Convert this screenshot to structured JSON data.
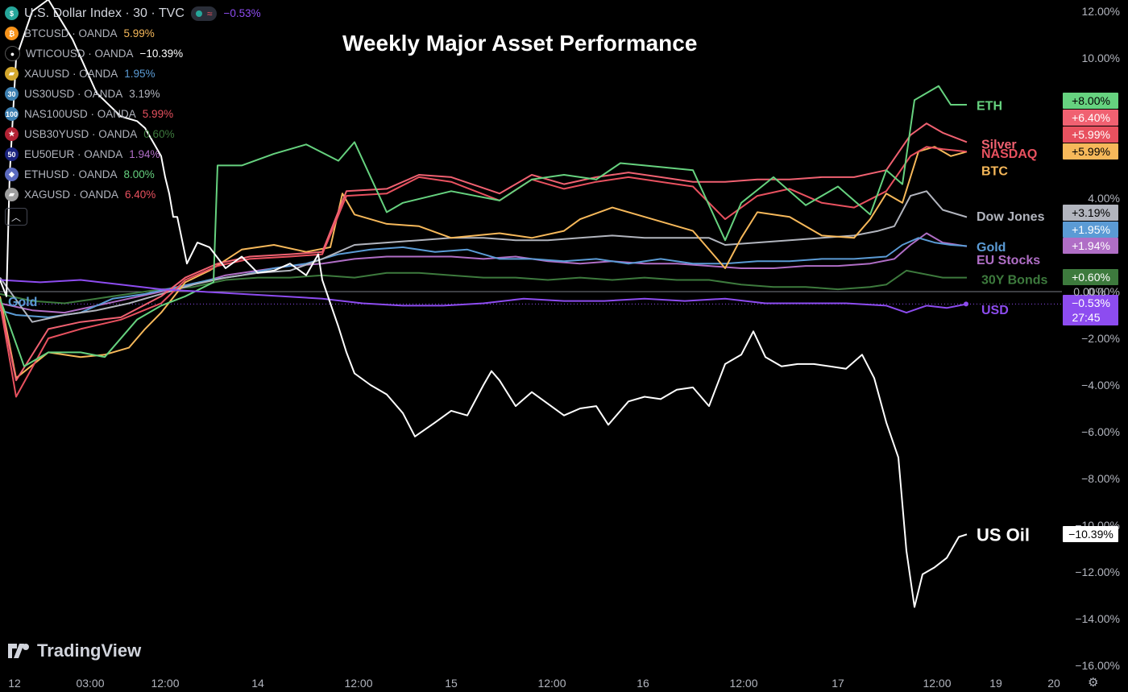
{
  "title": "Weekly Major Asset Performance",
  "header": {
    "symbol": "U.S. Dollar Index · 30 · TVC",
    "pill_glyph": "≈",
    "change": "−0.53%"
  },
  "legend": [
    {
      "icon": "bitcoin-icon",
      "glyph": "₿",
      "icon_bg": "#f7931a",
      "name": "BTCUSD · OANDA",
      "value": "5.99%",
      "color": "#f6b85a"
    },
    {
      "icon": "oil-drop-icon",
      "glyph": "●",
      "icon_bg": "#000000",
      "name": "WTICOUSD · OANDA",
      "value": "−10.39%",
      "color": "#ffffff"
    },
    {
      "icon": "gold-bars-icon",
      "glyph": "▰",
      "icon_bg": "#d4a72c",
      "name": "XAUUSD · OANDA",
      "value": "1.95%",
      "color": "#5b9bd5"
    },
    {
      "icon": "us30-icon",
      "glyph": "30",
      "icon_bg": "#3c7fb1",
      "name": "US30USD · OANDA",
      "value": "3.19%",
      "color": "#b2b5be"
    },
    {
      "icon": "nas100-icon",
      "glyph": "100",
      "icon_bg": "#3c7fb1",
      "name": "NAS100USD · OANDA",
      "value": "5.99%",
      "color": "#e8515f"
    },
    {
      "icon": "us-flag-icon",
      "glyph": "★",
      "icon_bg": "#b22234",
      "name": "USB30YUSD · OANDA",
      "value": "0.60%",
      "color": "#3d7a3d"
    },
    {
      "icon": "eu50-icon",
      "glyph": "50",
      "icon_bg": "#1a237e",
      "name": "EU50EUR · OANDA",
      "value": "1.94%",
      "color": "#b06ec6"
    },
    {
      "icon": "ethereum-icon",
      "glyph": "◆",
      "icon_bg": "#5c6bc0",
      "name": "ETHUSD · OANDA",
      "value": "8.00%",
      "color": "#66d27f"
    },
    {
      "icon": "silver-bars-icon",
      "glyph": "▰",
      "icon_bg": "#9e9e9e",
      "name": "XAGUSD · OANDA",
      "value": "6.40%",
      "color": "#e8515f"
    }
  ],
  "logo_text": "TradingView",
  "chart_data": {
    "type": "line",
    "x_ticks": [
      "12",
      "03:00",
      "12:00",
      "14",
      "12:00",
      "15",
      "12:00",
      "16",
      "12:00",
      "17",
      "12:00",
      "19",
      "20"
    ],
    "y_ticks": [
      "12.00%",
      "10.00%",
      "4.00%",
      "0.00%",
      "−2.00%",
      "−4.00%",
      "−6.00%",
      "−8.00%",
      "−10.00%",
      "−12.00%",
      "−14.00%",
      "−16.00%"
    ],
    "ylim": [
      -16,
      12
    ],
    "series": [
      {
        "name": "ETH",
        "color": "#66d27f",
        "badge": "+8.00%",
        "badge_text": "#000000",
        "x": [
          0,
          30,
          60,
          100,
          130,
          170,
          200,
          230,
          265,
          270,
          300,
          340,
          380,
          420,
          440,
          480,
          500,
          560,
          620,
          660,
          700,
          740,
          770,
          800,
          860,
          900,
          920,
          960,
          1000,
          1040,
          1080,
          1100,
          1120,
          1135,
          1150,
          1165,
          1180,
          1200
        ],
        "y": [
          -0.3,
          -3.2,
          -2.6,
          -2.6,
          -2.8,
          -1.2,
          -0.6,
          -0.2,
          0.4,
          5.4,
          5.4,
          5.9,
          6.3,
          5.6,
          6.4,
          3.4,
          3.8,
          4.3,
          3.9,
          4.8,
          5.0,
          4.8,
          5.5,
          5.4,
          5.2,
          2.2,
          3.8,
          4.9,
          3.7,
          4.5,
          3.3,
          5.2,
          4.6,
          8.2,
          8.5,
          8.8,
          8.0,
          8.0
        ]
      },
      {
        "name": "Silver",
        "color": "#f06171",
        "badge": "+6.40%",
        "badge_text": "#ffffff",
        "x": [
          0,
          20,
          60,
          100,
          150,
          200,
          230,
          270,
          310,
          360,
          400,
          430,
          480,
          520,
          560,
          620,
          660,
          700,
          740,
          780,
          820,
          860,
          900,
          940,
          980,
          1020,
          1060,
          1100,
          1130,
          1150,
          1170,
          1200
        ],
        "y": [
          -0.4,
          -3.8,
          -1.6,
          -1.3,
          -1.1,
          -0.2,
          0.6,
          1.2,
          1.5,
          1.6,
          1.7,
          4.3,
          4.4,
          5.0,
          4.9,
          4.2,
          5.0,
          4.6,
          4.9,
          5.1,
          4.9,
          4.7,
          4.7,
          4.8,
          4.8,
          4.9,
          4.9,
          5.2,
          6.7,
          7.2,
          6.8,
          6.4
        ]
      },
      {
        "name": "NASDAQ",
        "color": "#e8515f",
        "badge": "+5.99%",
        "badge_text": "#ffffff",
        "x": [
          0,
          20,
          60,
          100,
          150,
          200,
          230,
          270,
          310,
          360,
          400,
          430,
          480,
          520,
          560,
          620,
          660,
          700,
          740,
          780,
          820,
          860,
          900,
          940,
          980,
          1020,
          1060,
          1100,
          1130,
          1150,
          1170,
          1200
        ],
        "y": [
          -0.5,
          -4.5,
          -2.0,
          -1.6,
          -1.2,
          -0.5,
          0.5,
          1.1,
          1.4,
          1.5,
          1.6,
          4.1,
          4.2,
          4.9,
          4.7,
          3.9,
          4.8,
          4.4,
          4.7,
          4.9,
          4.7,
          4.5,
          3.1,
          4.1,
          4.4,
          3.8,
          3.6,
          4.3,
          5.8,
          6.2,
          6.1,
          5.99
        ]
      },
      {
        "name": "BTC",
        "color": "#f6b85a",
        "badge": "+5.99%",
        "badge_text": "#000000",
        "x": [
          0,
          20,
          60,
          100,
          130,
          160,
          180,
          200,
          230,
          260,
          300,
          340,
          380,
          410,
          425,
          440,
          480,
          520,
          560,
          620,
          660,
          700,
          720,
          760,
          800,
          860,
          900,
          920,
          940,
          980,
          1020,
          1060,
          1080,
          1100,
          1120,
          1140,
          1160,
          1180,
          1200
        ],
        "y": [
          -0.2,
          -3.7,
          -2.6,
          -2.8,
          -2.7,
          -2.4,
          -1.6,
          -0.9,
          0.4,
          0.9,
          1.8,
          2.0,
          1.7,
          1.9,
          4.2,
          3.3,
          2.9,
          2.8,
          2.3,
          2.5,
          2.3,
          2.6,
          3.1,
          3.6,
          3.2,
          2.6,
          1.0,
          2.3,
          3.4,
          3.2,
          2.4,
          2.3,
          3.1,
          4.2,
          3.8,
          6.0,
          6.2,
          5.8,
          5.99
        ]
      },
      {
        "name": "Dow Jones",
        "color": "#b2b5be",
        "badge": "+3.19%",
        "badge_text": "#000000",
        "x": [
          0,
          40,
          80,
          120,
          160,
          200,
          240,
          280,
          320,
          360,
          400,
          440,
          480,
          520,
          560,
          600,
          640,
          680,
          720,
          760,
          800,
          840,
          880,
          900,
          940,
          980,
          1020,
          1060,
          1090,
          1110,
          1130,
          1150,
          1170,
          1200
        ],
        "y": [
          0.6,
          -1.3,
          -1.0,
          -0.8,
          -0.5,
          -0.1,
          0.3,
          0.6,
          0.8,
          0.9,
          1.4,
          2.0,
          2.1,
          2.2,
          2.3,
          2.3,
          2.2,
          2.2,
          2.3,
          2.4,
          2.3,
          2.3,
          2.3,
          2.0,
          2.1,
          2.2,
          2.3,
          2.4,
          2.6,
          2.8,
          4.1,
          4.3,
          3.5,
          3.19
        ]
      },
      {
        "name": "Gold",
        "color": "#5b9bd5",
        "badge": "+1.95%",
        "badge_text": "#ffffff",
        "x": [
          0,
          20,
          60,
          100,
          140,
          180,
          220,
          260,
          300,
          340,
          380,
          420,
          460,
          500,
          540,
          580,
          620,
          660,
          700,
          740,
          780,
          820,
          860,
          900,
          940,
          980,
          1020,
          1060,
          1100,
          1120,
          1140,
          1160,
          1180,
          1200
        ],
        "y": [
          -0.8,
          -1.0,
          -1.1,
          -0.9,
          -0.3,
          -0.1,
          0.2,
          0.5,
          0.7,
          1.0,
          1.2,
          1.6,
          1.8,
          1.9,
          1.7,
          1.8,
          1.4,
          1.4,
          1.3,
          1.4,
          1.2,
          1.4,
          1.2,
          1.2,
          1.3,
          1.3,
          1.4,
          1.4,
          1.5,
          2.0,
          2.3,
          2.1,
          2.0,
          1.95
        ]
      },
      {
        "name": "EU Stocks",
        "color": "#b06ec6",
        "badge": "+1.94%",
        "badge_text": "#ffffff",
        "x": [
          0,
          40,
          80,
          120,
          160,
          200,
          240,
          280,
          320,
          360,
          400,
          440,
          480,
          520,
          560,
          600,
          640,
          680,
          720,
          760,
          800,
          840,
          880,
          920,
          960,
          1000,
          1040,
          1080,
          1110,
          1130,
          1150,
          1170,
          1200
        ],
        "y": [
          -0.5,
          -0.8,
          -0.9,
          -0.6,
          -0.3,
          0.0,
          0.3,
          0.7,
          0.9,
          1.1,
          1.2,
          1.4,
          1.5,
          1.5,
          1.5,
          1.4,
          1.5,
          1.3,
          1.2,
          1.3,
          1.2,
          1.2,
          1.1,
          1.0,
          1.0,
          1.1,
          1.1,
          1.2,
          1.4,
          2.0,
          2.5,
          2.1,
          1.94
        ]
      },
      {
        "name": "30Y Bonds",
        "color": "#3d7a3d",
        "badge": "+0.60%",
        "badge_text": "#ffffff",
        "x": [
          0,
          40,
          80,
          120,
          160,
          200,
          240,
          280,
          320,
          360,
          400,
          440,
          480,
          520,
          560,
          600,
          640,
          680,
          720,
          760,
          800,
          840,
          880,
          920,
          960,
          1000,
          1040,
          1080,
          1100,
          1125,
          1140,
          1170,
          1200
        ],
        "y": [
          -0.1,
          -0.4,
          -0.5,
          -0.3,
          -0.1,
          0.1,
          0.2,
          0.5,
          0.6,
          0.6,
          0.7,
          0.6,
          0.8,
          0.8,
          0.7,
          0.6,
          0.6,
          0.5,
          0.6,
          0.5,
          0.6,
          0.5,
          0.5,
          0.3,
          0.2,
          0.2,
          0.1,
          0.2,
          0.3,
          0.9,
          0.8,
          0.6,
          0.6
        ]
      },
      {
        "name": "USD",
        "color": "#8d4cf0",
        "badge": "−0.53%",
        "badge_text": "#ffffff",
        "badge_sub": "27:45",
        "x": [
          0,
          50,
          100,
          150,
          200,
          250,
          300,
          350,
          400,
          450,
          500,
          550,
          600,
          650,
          700,
          750,
          800,
          850,
          900,
          950,
          1000,
          1050,
          1100,
          1125,
          1150,
          1175,
          1200
        ],
        "y": [
          0.5,
          0.4,
          0.5,
          0.3,
          0.1,
          0.0,
          -0.1,
          -0.2,
          -0.3,
          -0.5,
          -0.6,
          -0.6,
          -0.5,
          -0.3,
          -0.4,
          -0.4,
          -0.3,
          -0.4,
          -0.3,
          -0.5,
          -0.5,
          -0.5,
          -0.6,
          -0.9,
          -0.6,
          -0.7,
          -0.53
        ]
      },
      {
        "name": "US Oil",
        "color": "#ffffff",
        "badge": "−10.39%",
        "badge_text": "#000000",
        "x": [
          0,
          8,
          12,
          20,
          40,
          60,
          90,
          120,
          150,
          170,
          180,
          200,
          205,
          210,
          215,
          220,
          232,
          245,
          260,
          280,
          300,
          320,
          340,
          360,
          380,
          395,
          400,
          410,
          420,
          430,
          440,
          460,
          480,
          500,
          515,
          540,
          560,
          580,
          600,
          610,
          620,
          640,
          660,
          680,
          700,
          720,
          740,
          755,
          780,
          800,
          820,
          840,
          860,
          880,
          900,
          920,
          935,
          950,
          970,
          990,
          1010,
          1030,
          1050,
          1070,
          1085,
          1100,
          1115,
          1125,
          1135,
          1145,
          1160,
          1175,
          1190,
          1200
        ],
        "y": [
          0.5,
          -0.2,
          5,
          10,
          12,
          12.5,
          10.8,
          8.5,
          7.5,
          7.3,
          7.0,
          5.8,
          4.9,
          4.2,
          3.2,
          3.2,
          1.2,
          2.1,
          1.9,
          1.0,
          1.5,
          0.8,
          0.9,
          1.2,
          0.7,
          1.6,
          0.5,
          -0.5,
          -1.5,
          -2.6,
          -3.5,
          -4.0,
          -4.4,
          -5.2,
          -6.2,
          -5.6,
          -5.1,
          -5.3,
          -4.0,
          -3.4,
          -3.8,
          -4.9,
          -4.3,
          -4.8,
          -5.3,
          -5.0,
          -4.9,
          -5.7,
          -4.7,
          -4.5,
          -4.6,
          -4.2,
          -4.1,
          -4.9,
          -3.1,
          -2.7,
          -1.7,
          -2.8,
          -3.2,
          -3.1,
          -3.1,
          -3.2,
          -3.3,
          -2.7,
          -3.7,
          -5.6,
          -7.1,
          -11.1,
          -13.5,
          -12.1,
          -11.8,
          -11.4,
          -10.5,
          -10.39
        ]
      }
    ],
    "labels": [
      {
        "text": "ETH",
        "series": "ETH",
        "y": 7.95,
        "color": "#66d27f"
      },
      {
        "text": "Silver",
        "series": "Silver",
        "y": 6.3,
        "color": "#f06171"
      },
      {
        "text": "NASDAQ",
        "series": "NASDAQ",
        "y": 5.9,
        "color": "#e8515f"
      },
      {
        "text": "BTC",
        "series": "BTC",
        "y": 5.15,
        "color": "#f6b85a"
      },
      {
        "text": "Dow Jones",
        "series": "Dow Jones",
        "y": 3.2,
        "color": "#b2b5be"
      },
      {
        "text": "Gold",
        "series": "Gold",
        "y": 1.9,
        "color": "#5b9bd5"
      },
      {
        "text": "EU Stocks",
        "series": "EU Stocks",
        "y": 1.35,
        "color": "#b06ec6"
      },
      {
        "text": "30Y Bonds",
        "series": "30Y Bonds",
        "y": 0.5,
        "color": "#3d7a3d"
      },
      {
        "text": "USD",
        "series": "USD",
        "y": -0.8,
        "color": "#8d4cf0"
      },
      {
        "text": "US Oil",
        "series": "US Oil",
        "y": -10.5,
        "color": "#ffffff"
      },
      {
        "text": "Gold",
        "series": "Gold",
        "y": -0.45,
        "color": "#5b9bd5"
      }
    ],
    "zero_label": "0.00%",
    "grid": false
  }
}
